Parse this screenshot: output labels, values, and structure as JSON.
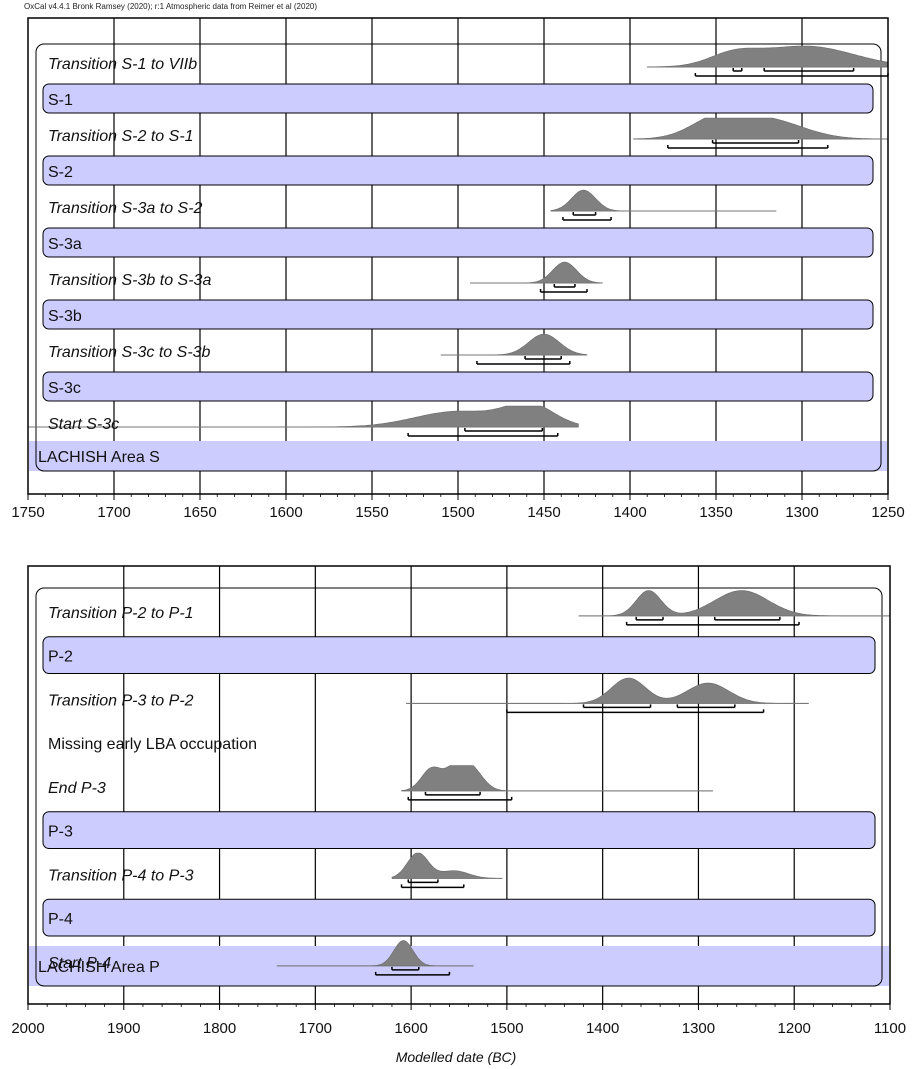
{
  "caption": "OxCal v4.4.1 Bronk Ramsey (2020); r:1 Atmospheric data from Reimer et al (2020)",
  "xlabel": "Modelled date (BC)",
  "colors": {
    "band": "#ccccff",
    "dist": "#808080",
    "frame": "#000000",
    "grid": "#000000"
  },
  "chart_data": [
    {
      "type": "area",
      "title": "",
      "xlim": [
        1750,
        1250
      ],
      "ticks": [
        1750,
        1700,
        1650,
        1600,
        1550,
        1500,
        1450,
        1400,
        1350,
        1300,
        1250
      ],
      "grid": true,
      "group_label": "LACHISH Area S",
      "rows": [
        {
          "label": "Transition S-1 to VIIb",
          "kind": "dist",
          "range": [
            1390,
            1250
          ],
          "peaks": [
            {
              "x": 1340,
              "h": 0.5,
              "w": 14
            },
            {
              "x": 1298,
              "h": 1.0,
              "w": 28
            }
          ],
          "r68": [
            [
              1340,
              1335
            ],
            [
              1322,
              1270
            ]
          ],
          "r95": [
            [
              1362,
              1250
            ]
          ]
        },
        {
          "label": "S-1",
          "kind": "phase"
        },
        {
          "label": "Transition S-2 to S-1",
          "kind": "dist",
          "range": [
            1398,
            1250
          ],
          "peaks": [
            {
              "x": 1348,
              "h": 1.0,
              "w": 16
            },
            {
              "x": 1318,
              "h": 0.85,
              "w": 20
            }
          ],
          "r68": [
            [
              1352,
              1302
            ]
          ],
          "r95": [
            [
              1378,
              1285
            ]
          ]
        },
        {
          "label": "S-2",
          "kind": "phase"
        },
        {
          "label": "Transition S-3a to S-2",
          "kind": "dist",
          "range": [
            1446,
            1315
          ],
          "peaks": [
            {
              "x": 1427,
              "h": 1.0,
              "w": 7
            }
          ],
          "r68": [
            [
              1433,
              1420
            ]
          ],
          "r95": [
            [
              1439,
              1411
            ]
          ]
        },
        {
          "label": "S-3a",
          "kind": "phase"
        },
        {
          "label": "Transition S-3b to S-3a",
          "kind": "dist",
          "range": [
            1493,
            1416
          ],
          "peaks": [
            {
              "x": 1438,
              "h": 1.0,
              "w": 7
            }
          ],
          "r68": [
            [
              1444,
              1432
            ]
          ],
          "r95": [
            [
              1452,
              1425
            ]
          ]
        },
        {
          "label": "S-3b",
          "kind": "phase"
        },
        {
          "label": "Transition S-3c to S-3b",
          "kind": "dist",
          "range": [
            1510,
            1425
          ],
          "peaks": [
            {
              "x": 1450,
              "h": 1.0,
              "w": 9
            }
          ],
          "r68": [
            [
              1461,
              1440
            ]
          ],
          "r95": [
            [
              1489,
              1435
            ]
          ]
        },
        {
          "label": "S-3c",
          "kind": "phase"
        },
        {
          "label": "Start S-3c",
          "kind": "dist",
          "range": [
            1750,
            1430
          ],
          "peaks": [
            {
              "x": 1500,
              "h": 0.75,
              "w": 25
            },
            {
              "x": 1458,
              "h": 1.0,
              "w": 14
            }
          ],
          "r68": [
            [
              1496,
              1451
            ]
          ],
          "r95": [
            [
              1529,
              1442
            ]
          ]
        }
      ]
    },
    {
      "type": "area",
      "title": "",
      "xlim": [
        2000,
        1100
      ],
      "ticks": [
        2000,
        1900,
        1800,
        1700,
        1600,
        1500,
        1400,
        1300,
        1200,
        1100
      ],
      "grid": true,
      "group_label": "LACHISH Area P",
      "rows": [
        {
          "label": "Transition P-2 to P-1",
          "kind": "dist",
          "range": [
            1425,
            1100
          ],
          "peaks": [
            {
              "x": 1352,
              "h": 1.0,
              "w": 13
            },
            {
              "x": 1255,
              "h": 1.0,
              "w": 28
            }
          ],
          "r68": [
            [
              1365,
              1337
            ],
            [
              1283,
              1215
            ]
          ],
          "r95": [
            [
              1375,
              1195
            ]
          ]
        },
        {
          "label": "P-2",
          "kind": "phase"
        },
        {
          "label": "Transition P-3 to P-2",
          "kind": "dist",
          "range": [
            1605,
            1185
          ],
          "peaks": [
            {
              "x": 1373,
              "h": 1.0,
              "w": 18
            },
            {
              "x": 1290,
              "h": 0.8,
              "w": 22
            }
          ],
          "r68": [
            [
              1420,
              1350
            ],
            [
              1322,
              1262
            ]
          ],
          "r95": [
            [
              1500,
              1232
            ]
          ]
        },
        {
          "label": "Missing early LBA occupation",
          "kind": "text"
        },
        {
          "label": "End P-3",
          "kind": "dist",
          "range": [
            1610,
            1285
          ],
          "peaks": [
            {
              "x": 1578,
              "h": 0.9,
              "w": 11
            },
            {
              "x": 1553,
              "h": 0.8,
              "w": 10
            },
            {
              "x": 1537,
              "h": 0.85,
              "w": 12
            }
          ],
          "r68": [
            [
              1585,
              1528
            ]
          ],
          "r95": [
            [
              1603,
              1495
            ]
          ]
        },
        {
          "label": "P-3",
          "kind": "phase"
        },
        {
          "label": "Transition P-4 to P-3",
          "kind": "dist",
          "range": [
            1620,
            1505
          ],
          "peaks": [
            {
              "x": 1593,
              "h": 1.0,
              "w": 11
            },
            {
              "x": 1555,
              "h": 0.3,
              "w": 15
            }
          ],
          "r68": [
            [
              1603,
              1572
            ]
          ],
          "r95": [
            [
              1610,
              1545
            ]
          ]
        },
        {
          "label": "P-4",
          "kind": "phase"
        },
        {
          "label": "Start P-4",
          "kind": "dist",
          "range": [
            1740,
            1535
          ],
          "peaks": [
            {
              "x": 1608,
              "h": 1.0,
              "w": 10
            }
          ],
          "r68": [
            [
              1620,
              1592
            ]
          ],
          "r95": [
            [
              1637,
              1560
            ]
          ]
        }
      ]
    }
  ]
}
